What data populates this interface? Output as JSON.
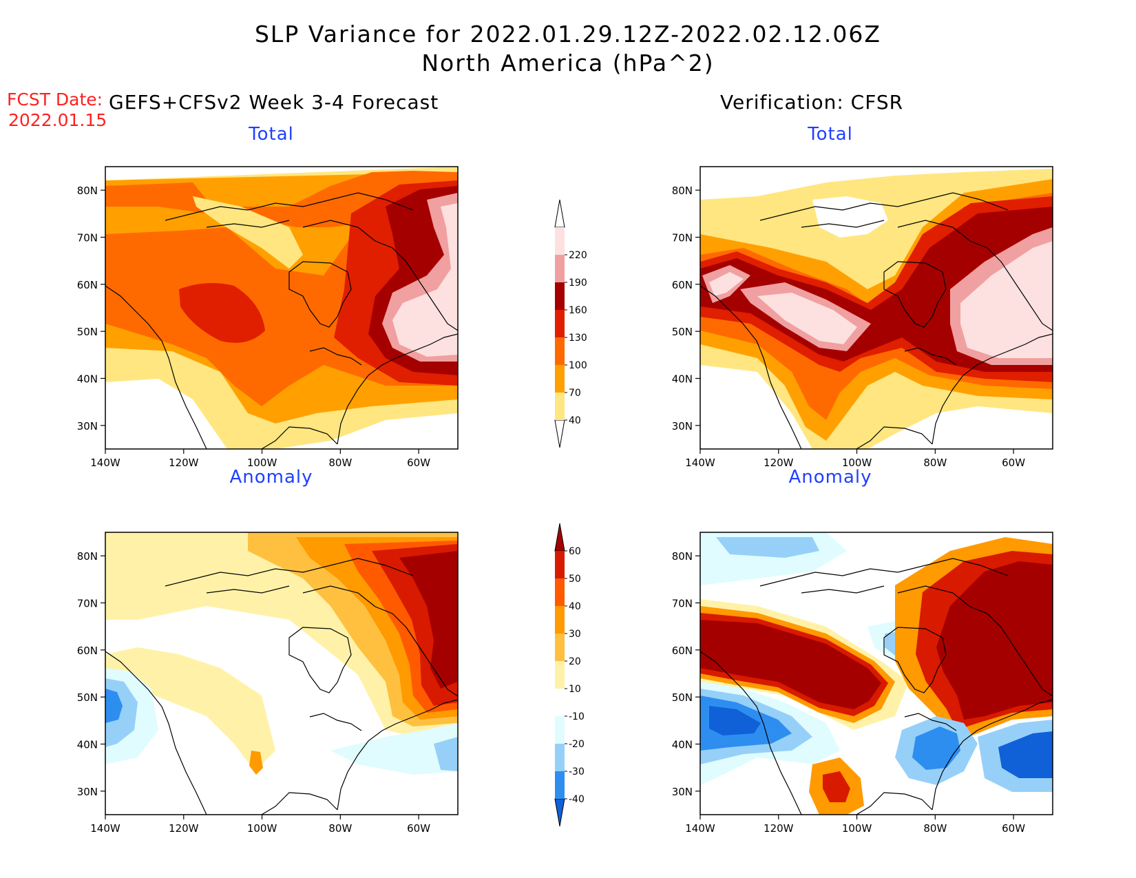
{
  "header": {
    "title_line1": "SLP Variance for 2022.01.29.12Z-2022.02.12.06Z",
    "title_line2": "North America (hPa^2)",
    "fcst_label": "FCST Date:",
    "fcst_date": "2022.01.15",
    "left_heading": "GEFS+CFSv2 Week 3-4 Forecast",
    "right_heading": "Verification: CFSR"
  },
  "panels": [
    {
      "id": "fcst-total",
      "title": "Total",
      "kind": "total"
    },
    {
      "id": "verif-total",
      "title": "Total",
      "kind": "total"
    },
    {
      "id": "fcst-anomaly",
      "title": "Anomaly",
      "kind": "anomaly"
    },
    {
      "id": "verif-anomaly",
      "title": "Anomaly",
      "kind": "anomaly"
    }
  ],
  "axes": {
    "lon_labels": [
      "140W",
      "120W",
      "100W",
      "80W",
      "60W"
    ],
    "lat_labels": [
      "80N",
      "70N",
      "60N",
      "50N",
      "40N",
      "30N"
    ],
    "lon_range": [
      -140,
      -50
    ],
    "lat_range": [
      25,
      85
    ]
  },
  "total_colorbar": {
    "levels": [
      "40",
      "70",
      "100",
      "130",
      "160",
      "190",
      "220"
    ],
    "colors": [
      "#ffe680",
      "#ffa000",
      "#ff6a00",
      "#e01e00",
      "#a50000",
      "#f0a0a0",
      "#fde0e0"
    ]
  },
  "anomaly_colorbar": {
    "levels": [
      "-40",
      "-30",
      "-20",
      "-10",
      "10",
      "20",
      "30",
      "40",
      "50",
      "60"
    ],
    "colors": [
      "#1060d8",
      "#2d8ef0",
      "#96d0f8",
      "#e0fcff",
      "#ffffff",
      "#fff2a8",
      "#ffc040",
      "#ff9a00",
      "#ff5a00",
      "#d81a00",
      "#a50000"
    ]
  }
}
